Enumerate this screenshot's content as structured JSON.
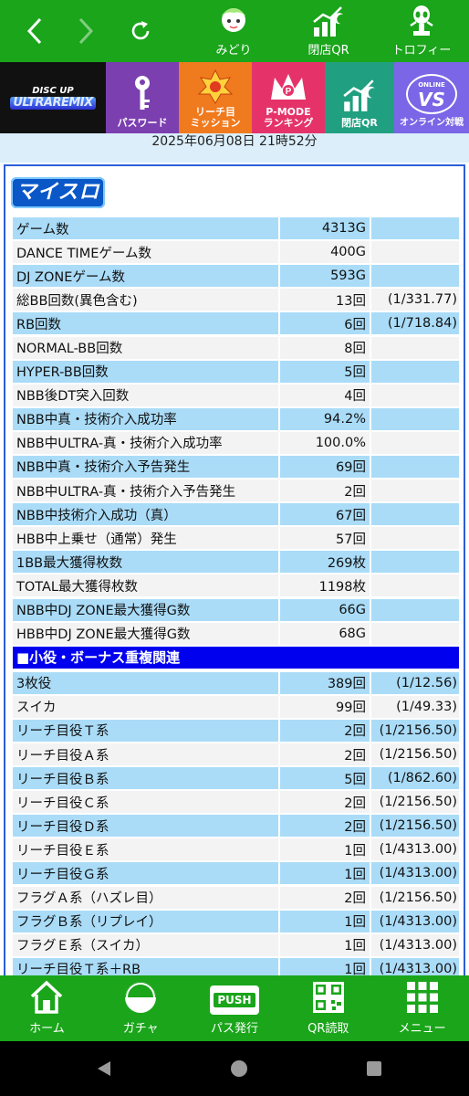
{
  "nav": {
    "midori_label": "みどり",
    "qr_label": "閉店QR",
    "trophy_label": "トロフィー"
  },
  "banner": {
    "logo_top": "DISC UP",
    "logo_bottom": "ULTRAREMIX",
    "pass_label": "パスワード",
    "mission_label_1": "リーチ目",
    "mission_label_2": "ミッション",
    "pmode_label_1": "P-MODE",
    "pmode_label_2": "ランキング",
    "qr_label": "閉店QR",
    "vs_label": "オンライン対戦",
    "vs_badge": "VS",
    "vs_top": "ONLINE"
  },
  "datetime": "2025年06月08日 21時52分",
  "logo_text": "マイスロ",
  "stats": [
    {
      "label": "ゲーム数",
      "value": "4313G",
      "prob": ""
    },
    {
      "label": "DANCE TIMEゲーム数",
      "value": "400G",
      "prob": ""
    },
    {
      "label": "DJ ZONEゲーム数",
      "value": "593G",
      "prob": ""
    },
    {
      "label": "総BB回数(異色含む)",
      "value": "13回",
      "prob": "(1/331.77)"
    },
    {
      "label": "RB回数",
      "value": "6回",
      "prob": "(1/718.84)"
    },
    {
      "label": "NORMAL-BB回数",
      "value": "8回",
      "prob": ""
    },
    {
      "label": "HYPER-BB回数",
      "value": "5回",
      "prob": ""
    },
    {
      "label": "NBB後DT突入回数",
      "value": "4回",
      "prob": ""
    },
    {
      "label": "NBB中真・技術介入成功率",
      "value": "94.2%",
      "prob": ""
    },
    {
      "label": "NBB中ULTRA-真・技術介入成功率",
      "value": "100.0%",
      "prob": ""
    },
    {
      "label": "NBB中真・技術介入予告発生",
      "value": "69回",
      "prob": ""
    },
    {
      "label": "NBB中ULTRA-真・技術介入予告発生",
      "value": "2回",
      "prob": ""
    },
    {
      "label": "NBB中技術介入成功（真）",
      "value": "67回",
      "prob": ""
    },
    {
      "label": "HBB中上乗せ（通常）発生",
      "value": "57回",
      "prob": ""
    },
    {
      "label": "1BB最大獲得枚数",
      "value": "269枚",
      "prob": ""
    },
    {
      "label": "TOTAL最大獲得枚数",
      "value": "1198枚",
      "prob": ""
    },
    {
      "label": "NBB中DJ ZONE最大獲得G数",
      "value": "66G",
      "prob": ""
    },
    {
      "label": "HBB中DJ ZONE最大獲得G数",
      "value": "68G",
      "prob": ""
    }
  ],
  "section_title": "■小役・ボーナス重複関連",
  "koyaku": [
    {
      "label": "3枚役",
      "value": "389回",
      "prob": "(1/12.56)"
    },
    {
      "label": "スイカ",
      "value": "99回",
      "prob": "(1/49.33)"
    },
    {
      "label": "リーチ目役Ｔ系",
      "value": "2回",
      "prob": "(1/2156.50)"
    },
    {
      "label": "リーチ目役Ａ系",
      "value": "2回",
      "prob": "(1/2156.50)"
    },
    {
      "label": "リーチ目役Ｂ系",
      "value": "5回",
      "prob": "(1/862.60)"
    },
    {
      "label": "リーチ目役Ｃ系",
      "value": "2回",
      "prob": "(1/2156.50)"
    },
    {
      "label": "リーチ目役Ｄ系",
      "value": "2回",
      "prob": "(1/2156.50)"
    },
    {
      "label": "リーチ目役Ｅ系",
      "value": "1回",
      "prob": "(1/4313.00)"
    },
    {
      "label": "リーチ目役Ｇ系",
      "value": "1回",
      "prob": "(1/4313.00)"
    },
    {
      "label": "フラグＡ系（ハズレ目）",
      "value": "2回",
      "prob": "(1/2156.50)"
    },
    {
      "label": "フラグＢ系（リプレイ）",
      "value": "1回",
      "prob": "(1/4313.00)"
    },
    {
      "label": "フラグＥ系（スイカ）",
      "value": "1回",
      "prob": "(1/4313.00)"
    },
    {
      "label": "リーチ目役Ｔ系＋RB",
      "value": "1回",
      "prob": "(1/4313.00)"
    }
  ],
  "tabs": {
    "home": "ホーム",
    "gacha": "ガチャ",
    "pass": "パス発行",
    "pass_icon_text": "PUSH",
    "qr": "QR読取",
    "menu": "メニュー"
  },
  "colors": {
    "brand_green": "#1aa51a",
    "row_highlight": "#aadcf8",
    "section_blue": "#0000ee",
    "panel_border": "#2a5fd6"
  }
}
